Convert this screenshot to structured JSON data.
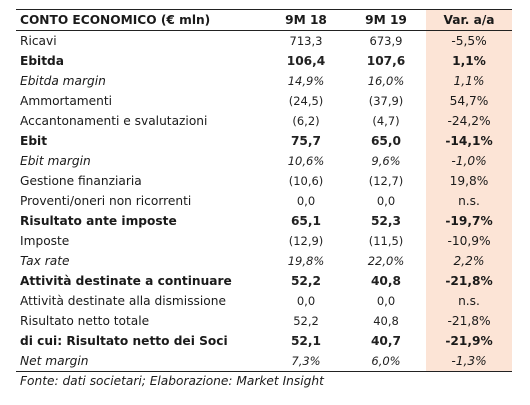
{
  "table": {
    "headers": [
      "CONTO ECONOMICO (€ mln)",
      "9M 18",
      "9M 19",
      "Var. a/a"
    ],
    "rows": [
      {
        "label": "Ricavi",
        "a": "713,3",
        "b": "673,9",
        "c": "-5,5%",
        "style": "reg"
      },
      {
        "label": "Ebitda",
        "a": "106,4",
        "b": "107,6",
        "c": "1,1%",
        "style": "bold"
      },
      {
        "label": "Ebitda margin",
        "a": "14,9%",
        "b": "16,0%",
        "c": "1,1%",
        "style": "ital"
      },
      {
        "label": "Ammortamenti",
        "a": "(24,5)",
        "b": "(37,9)",
        "c": "54,7%",
        "style": "reg"
      },
      {
        "label": "Accantonamenti e svalutazioni",
        "a": "(6,2)",
        "b": "(4,7)",
        "c": "-24,2%",
        "style": "reg"
      },
      {
        "label": "Ebit",
        "a": "75,7",
        "b": "65,0",
        "c": "-14,1%",
        "style": "bold"
      },
      {
        "label": "Ebit margin",
        "a": "10,6%",
        "b": "9,6%",
        "c": "-1,0%",
        "style": "ital"
      },
      {
        "label": "Gestione finanziaria",
        "a": "(10,6)",
        "b": "(12,7)",
        "c": "19,8%",
        "style": "reg"
      },
      {
        "label": "Proventi/oneri non ricorrenti",
        "a": "0,0",
        "b": "0,0",
        "c": "n.s.",
        "style": "reg"
      },
      {
        "label": "Risultato ante imposte",
        "a": "65,1",
        "b": "52,3",
        "c": "-19,7%",
        "style": "bold"
      },
      {
        "label": "Imposte",
        "a": "(12,9)",
        "b": "(11,5)",
        "c": "-10,9%",
        "style": "reg"
      },
      {
        "label": "Tax rate",
        "a": "19,8%",
        "b": "22,0%",
        "c": "2,2%",
        "style": "ital"
      },
      {
        "label": "Attività destinate a continuare",
        "a": "52,2",
        "b": "40,8",
        "c": "-21,8%",
        "style": "bold"
      },
      {
        "label": "Attività destinate alla dismissione",
        "a": "0,0",
        "b": "0,0",
        "c": "n.s.",
        "style": "reg"
      },
      {
        "label": "Risultato netto totale",
        "a": "52,2",
        "b": "40,8",
        "c": "-21,8%",
        "style": "reg"
      },
      {
        "label": "di cui: Risultato netto dei Soci",
        "a": "52,1",
        "b": "40,7",
        "c": "-21,9%",
        "style": "bold"
      },
      {
        "label": "Net margin",
        "a": "7,3%",
        "b": "6,0%",
        "c": "-1,3%",
        "style": "ital"
      }
    ]
  },
  "source": "Fonte: dati societari; Elaborazione: Market Insight"
}
